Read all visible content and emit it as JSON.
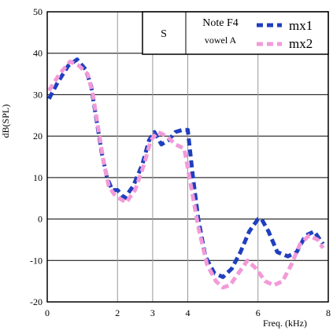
{
  "chart_data": {
    "type": "line",
    "xlabel": "Freq. (kHz)",
    "ylabel": "dB(SPL)",
    "xlim": [
      0,
      8
    ],
    "ylim": [
      -20,
      50
    ],
    "x_ticks": [
      0,
      2,
      3,
      4,
      6,
      8
    ],
    "y_ticks": [
      50,
      40,
      30,
      20,
      10,
      0,
      -10,
      -20
    ],
    "grid": true,
    "legend": {
      "position": "top-right",
      "box_letter": "S",
      "note_line1": "Note F4",
      "note_line2": "vowel A"
    },
    "series": [
      {
        "name": "mx1",
        "color": "#1f3fbf",
        "x": [
          0.05,
          0.3,
          0.6,
          0.85,
          1.1,
          1.25,
          1.4,
          1.55,
          1.7,
          1.85,
          2.0,
          2.2,
          2.45,
          2.7,
          2.9,
          3.05,
          3.25,
          3.45,
          3.65,
          3.85,
          4.0,
          4.15,
          4.3,
          4.5,
          4.75,
          5.0,
          5.25,
          5.5,
          5.75,
          6.0,
          6.1,
          6.3,
          6.55,
          6.85,
          7.1,
          7.35,
          7.6,
          7.85
        ],
        "values": [
          29,
          33,
          37,
          38.5,
          36,
          32,
          24,
          16,
          10,
          7,
          7,
          5,
          8,
          13,
          19,
          21,
          18,
          19,
          21,
          21.5,
          21.5,
          10,
          0,
          -9,
          -13,
          -14,
          -12,
          -8,
          -3,
          0,
          0,
          -3,
          -8,
          -9,
          -8,
          -4,
          -3,
          -6
        ]
      },
      {
        "name": "mx2",
        "color": "#f29ad8",
        "x": [
          0.05,
          0.35,
          0.65,
          0.9,
          1.15,
          1.3,
          1.45,
          1.6,
          1.75,
          1.9,
          2.05,
          2.25,
          2.5,
          2.75,
          2.95,
          3.15,
          3.4,
          3.65,
          3.9,
          4.05,
          4.3,
          4.55,
          4.8,
          5.0,
          5.2,
          5.45,
          5.7,
          5.95,
          6.2,
          6.45,
          6.7,
          6.95,
          7.2,
          7.45,
          7.7,
          7.85
        ],
        "values": [
          31,
          35,
          38,
          37,
          35,
          30,
          22,
          14,
          8,
          6,
          5,
          4,
          7,
          13,
          19,
          21,
          20,
          18,
          17,
          10,
          -2,
          -11,
          -15,
          -16.5,
          -16,
          -13,
          -10,
          -12,
          -15,
          -16,
          -15,
          -11,
          -6,
          -4,
          -5,
          -7
        ]
      }
    ]
  }
}
